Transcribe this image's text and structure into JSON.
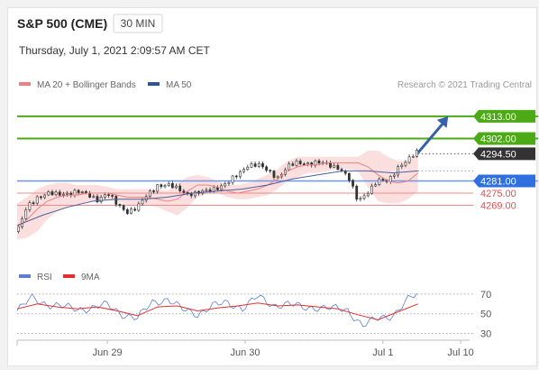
{
  "header": {
    "instrument": "S&P 500 (CME)",
    "timeframe": "30 MIN",
    "datetime": "Thursday, July 1, 2021 2:09:57 AM CET"
  },
  "legend": {
    "items": [
      {
        "label": "MA 20 + Bollinger Bands",
        "color": "#f08080"
      },
      {
        "label": "MA 50",
        "color": "#2f5597"
      }
    ],
    "credit": "Research © 2021 Trading Central"
  },
  "rsi_legend": {
    "items": [
      {
        "label": "RSI",
        "color": "#5b7fd6"
      },
      {
        "label": "9MA",
        "color": "#e23030"
      }
    ]
  },
  "chart_data": {
    "type": "line",
    "price_panel": {
      "ylim": [
        4250,
        4325
      ],
      "current_price": 4294.5,
      "levels": [
        {
          "value": 4313.0,
          "label": "4313.00",
          "kind": "resistance",
          "color": "#4caa14"
        },
        {
          "value": 4302.0,
          "label": "4302.00",
          "kind": "resistance",
          "color": "#4caa14"
        },
        {
          "value": 4294.5,
          "label": "4294.50",
          "kind": "last",
          "color": "#333333"
        },
        {
          "value": 4281.0,
          "label": "4281.00",
          "kind": "pivot",
          "color": "#2f6fe0"
        },
        {
          "value": 4275.0,
          "label": "4275.00",
          "kind": "support",
          "color": "#e05050"
        },
        {
          "value": 4269.0,
          "label": "4269.00",
          "kind": "support",
          "color": "#e05050"
        }
      ],
      "series": [
        {
          "name": "MA 20 + Bollinger Bands",
          "x": [
            0,
            4,
            8,
            12,
            16,
            20,
            24,
            28,
            32,
            36,
            40,
            44,
            48,
            52,
            56,
            60,
            64,
            68,
            72,
            76,
            80,
            84,
            88,
            92,
            96,
            100,
            104,
            108,
            112,
            116,
            120,
            124,
            128,
            132,
            136,
            140,
            144,
            148,
            152,
            156,
            160
          ],
          "values": [
            4258,
            4262,
            4267,
            4271,
            4273,
            4274,
            4274,
            4275,
            4275,
            4275,
            4274,
            4273,
            4273,
            4273,
            4272,
            4271,
            4272,
            4276,
            4279,
            4279,
            4278,
            4276,
            4275,
            4276,
            4277,
            4279,
            4282,
            4286,
            4288,
            4289,
            4289,
            4290,
            4290,
            4290,
            4290,
            4288,
            4284,
            4281,
            4280,
            4281,
            4285
          ],
          "upper": [
            4270,
            4273,
            4277,
            4279,
            4280,
            4280,
            4279,
            4279,
            4279,
            4278,
            4277,
            4277,
            4277,
            4277,
            4277,
            4276,
            4280,
            4283,
            4284,
            4283,
            4281,
            4279,
            4279,
            4280,
            4282,
            4284,
            4287,
            4291,
            4293,
            4293,
            4293,
            4293,
            4293,
            4293,
            4293,
            4296,
            4296,
            4293,
            4291,
            4291,
            4294
          ],
          "lower": [
            4252,
            4253,
            4256,
            4262,
            4266,
            4268,
            4269,
            4271,
            4271,
            4272,
            4271,
            4269,
            4269,
            4269,
            4268,
            4266,
            4264,
            4268,
            4273,
            4275,
            4275,
            4273,
            4272,
            4272,
            4273,
            4274,
            4277,
            4281,
            4283,
            4285,
            4285,
            4286,
            4287,
            4287,
            4286,
            4278,
            4271,
            4270,
            4270,
            4272,
            4276
          ]
        },
        {
          "name": "MA 50",
          "x": [
            0,
            10,
            20,
            30,
            40,
            50,
            60,
            70,
            80,
            90,
            100,
            110,
            120,
            130,
            140,
            150,
            160
          ],
          "values": [
            4259,
            4264,
            4268,
            4271,
            4272,
            4272,
            4273,
            4275,
            4276,
            4277,
            4279,
            4282,
            4284,
            4286,
            4286,
            4285,
            4286
          ]
        }
      ],
      "close": {
        "x": [
          0,
          4,
          8,
          12,
          16,
          20,
          24,
          28,
          32,
          36,
          40,
          44,
          48,
          52,
          56,
          60,
          64,
          68,
          72,
          76,
          80,
          84,
          88,
          92,
          96,
          100,
          104,
          108,
          112,
          116,
          120,
          124,
          128,
          132,
          136,
          140,
          144,
          148,
          152,
          156,
          160
        ],
        "values": [
          4256,
          4268,
          4273,
          4275,
          4274,
          4275,
          4276,
          4274,
          4272,
          4275,
          4269,
          4266,
          4268,
          4274,
          4279,
          4279,
          4277,
          4275,
          4275,
          4276,
          4278,
          4280,
          4284,
          4289,
          4289,
          4286,
          4283,
          4288,
          4290,
          4290,
          4290,
          4289,
          4288,
          4283,
          4271,
          4276,
          4281,
          4281,
          4288,
          4291,
          4296
        ]
      },
      "arrow": {
        "from": [
          160,
          4295
        ],
        "to": [
          172,
          4313
        ]
      }
    },
    "rsi_panel": {
      "ylim": [
        25,
        80
      ],
      "levels": [
        70,
        50,
        30
      ],
      "series": [
        {
          "name": "RSI",
          "x": [
            0,
            6,
            12,
            18,
            24,
            30,
            36,
            42,
            48,
            54,
            60,
            66,
            72,
            78,
            84,
            90,
            96,
            102,
            108,
            114,
            120,
            126,
            132,
            138,
            144,
            150,
            156,
            160
          ],
          "values": [
            53,
            66,
            60,
            57,
            55,
            56,
            59,
            50,
            45,
            62,
            65,
            54,
            50,
            58,
            61,
            56,
            67,
            59,
            60,
            56,
            57,
            55,
            54,
            38,
            45,
            49,
            64,
            70
          ]
        },
        {
          "name": "9MA",
          "x": [
            0,
            8,
            16,
            24,
            32,
            40,
            48,
            56,
            64,
            72,
            80,
            88,
            96,
            104,
            112,
            120,
            128,
            136,
            144,
            152,
            160
          ],
          "values": [
            55,
            60,
            57,
            55,
            57,
            53,
            48,
            57,
            58,
            53,
            56,
            58,
            61,
            58,
            59,
            57,
            55,
            49,
            44,
            52,
            60
          ]
        }
      ]
    },
    "x_axis": {
      "ticks": [
        {
          "x": 36,
          "label": "Jun 29"
        },
        {
          "x": 91,
          "label": "Jun 30"
        },
        {
          "x": 146,
          "label": "Jul 1"
        },
        {
          "x": 177,
          "label": "Jul 10"
        }
      ]
    },
    "xlim": [
      0,
      182
    ],
    "grid": false,
    "legend_position": "top-left"
  }
}
